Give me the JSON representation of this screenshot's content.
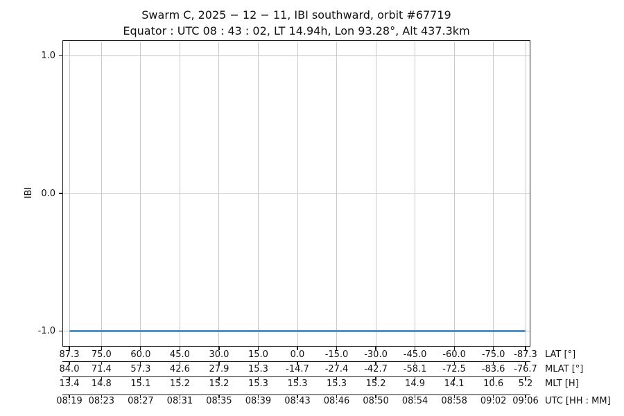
{
  "chart_data": {
    "type": "line",
    "title": "Swarm C,  2025 − 12 − 11,  IBI southward,  orbit #67719",
    "subtitle": "Equator :  UTC 08 : 43 : 02,  LT 14.94h,  Lon 93.28°,  Alt 437.3km",
    "ylabel": "IBI",
    "ylim": [
      -1.113,
      1.113
    ],
    "yticks": [
      {
        "value": 1.0,
        "label": "1.0"
      },
      {
        "value": 0.0,
        "label": "0.0"
      },
      {
        "value": -1.0,
        "label": "-1.0"
      }
    ],
    "grid": true,
    "legend": "none",
    "colors": {
      "line": "#4f94c6",
      "grid": "#c9c9c9",
      "spine": "#1a1a1a",
      "text": "#111111",
      "background": "#ffffff"
    },
    "series": [
      {
        "name": "IBI",
        "constant_value": -1.0,
        "x_range_lat": [
          87.3,
          -87.3
        ],
        "description": "IBI flag constant at -1.0 across entire pass"
      }
    ],
    "tick_lats": [
      87.3,
      75.0,
      60.0,
      45.0,
      30.0,
      15.0,
      0.0,
      -15.0,
      -30.0,
      -45.0,
      -60.0,
      -75.0,
      -87.3
    ],
    "x_axes": [
      {
        "caption": "LAT [°]",
        "labels": [
          "87.3",
          "75.0",
          "60.0",
          "45.0",
          "30.0",
          "15.0",
          "0.0",
          "-15.0",
          "-30.0",
          "-45.0",
          "-60.0",
          "-75.0",
          "-87.3"
        ]
      },
      {
        "caption": "MLAT [°]",
        "labels": [
          "84.0",
          "71.4",
          "57.3",
          "42.6",
          "27.9",
          "15.3",
          "-14.7",
          "-27.4",
          "-42.7",
          "-58.1",
          "-72.5",
          "-83.6",
          "-76.7"
        ]
      },
      {
        "caption": "MLT [H]",
        "labels": [
          "13.4",
          "14.8",
          "15.1",
          "15.2",
          "15.2",
          "15.3",
          "15.3",
          "15.3",
          "15.2",
          "14.9",
          "14.1",
          "10.6",
          "5.2"
        ]
      },
      {
        "caption": "UTC [HH : MM]",
        "labels": [
          "08:19",
          "08:23",
          "08:27",
          "08:31",
          "08:35",
          "08:39",
          "08:43",
          "08:46",
          "08:50",
          "08:54",
          "08:58",
          "09:02",
          "09:06"
        ]
      }
    ]
  }
}
